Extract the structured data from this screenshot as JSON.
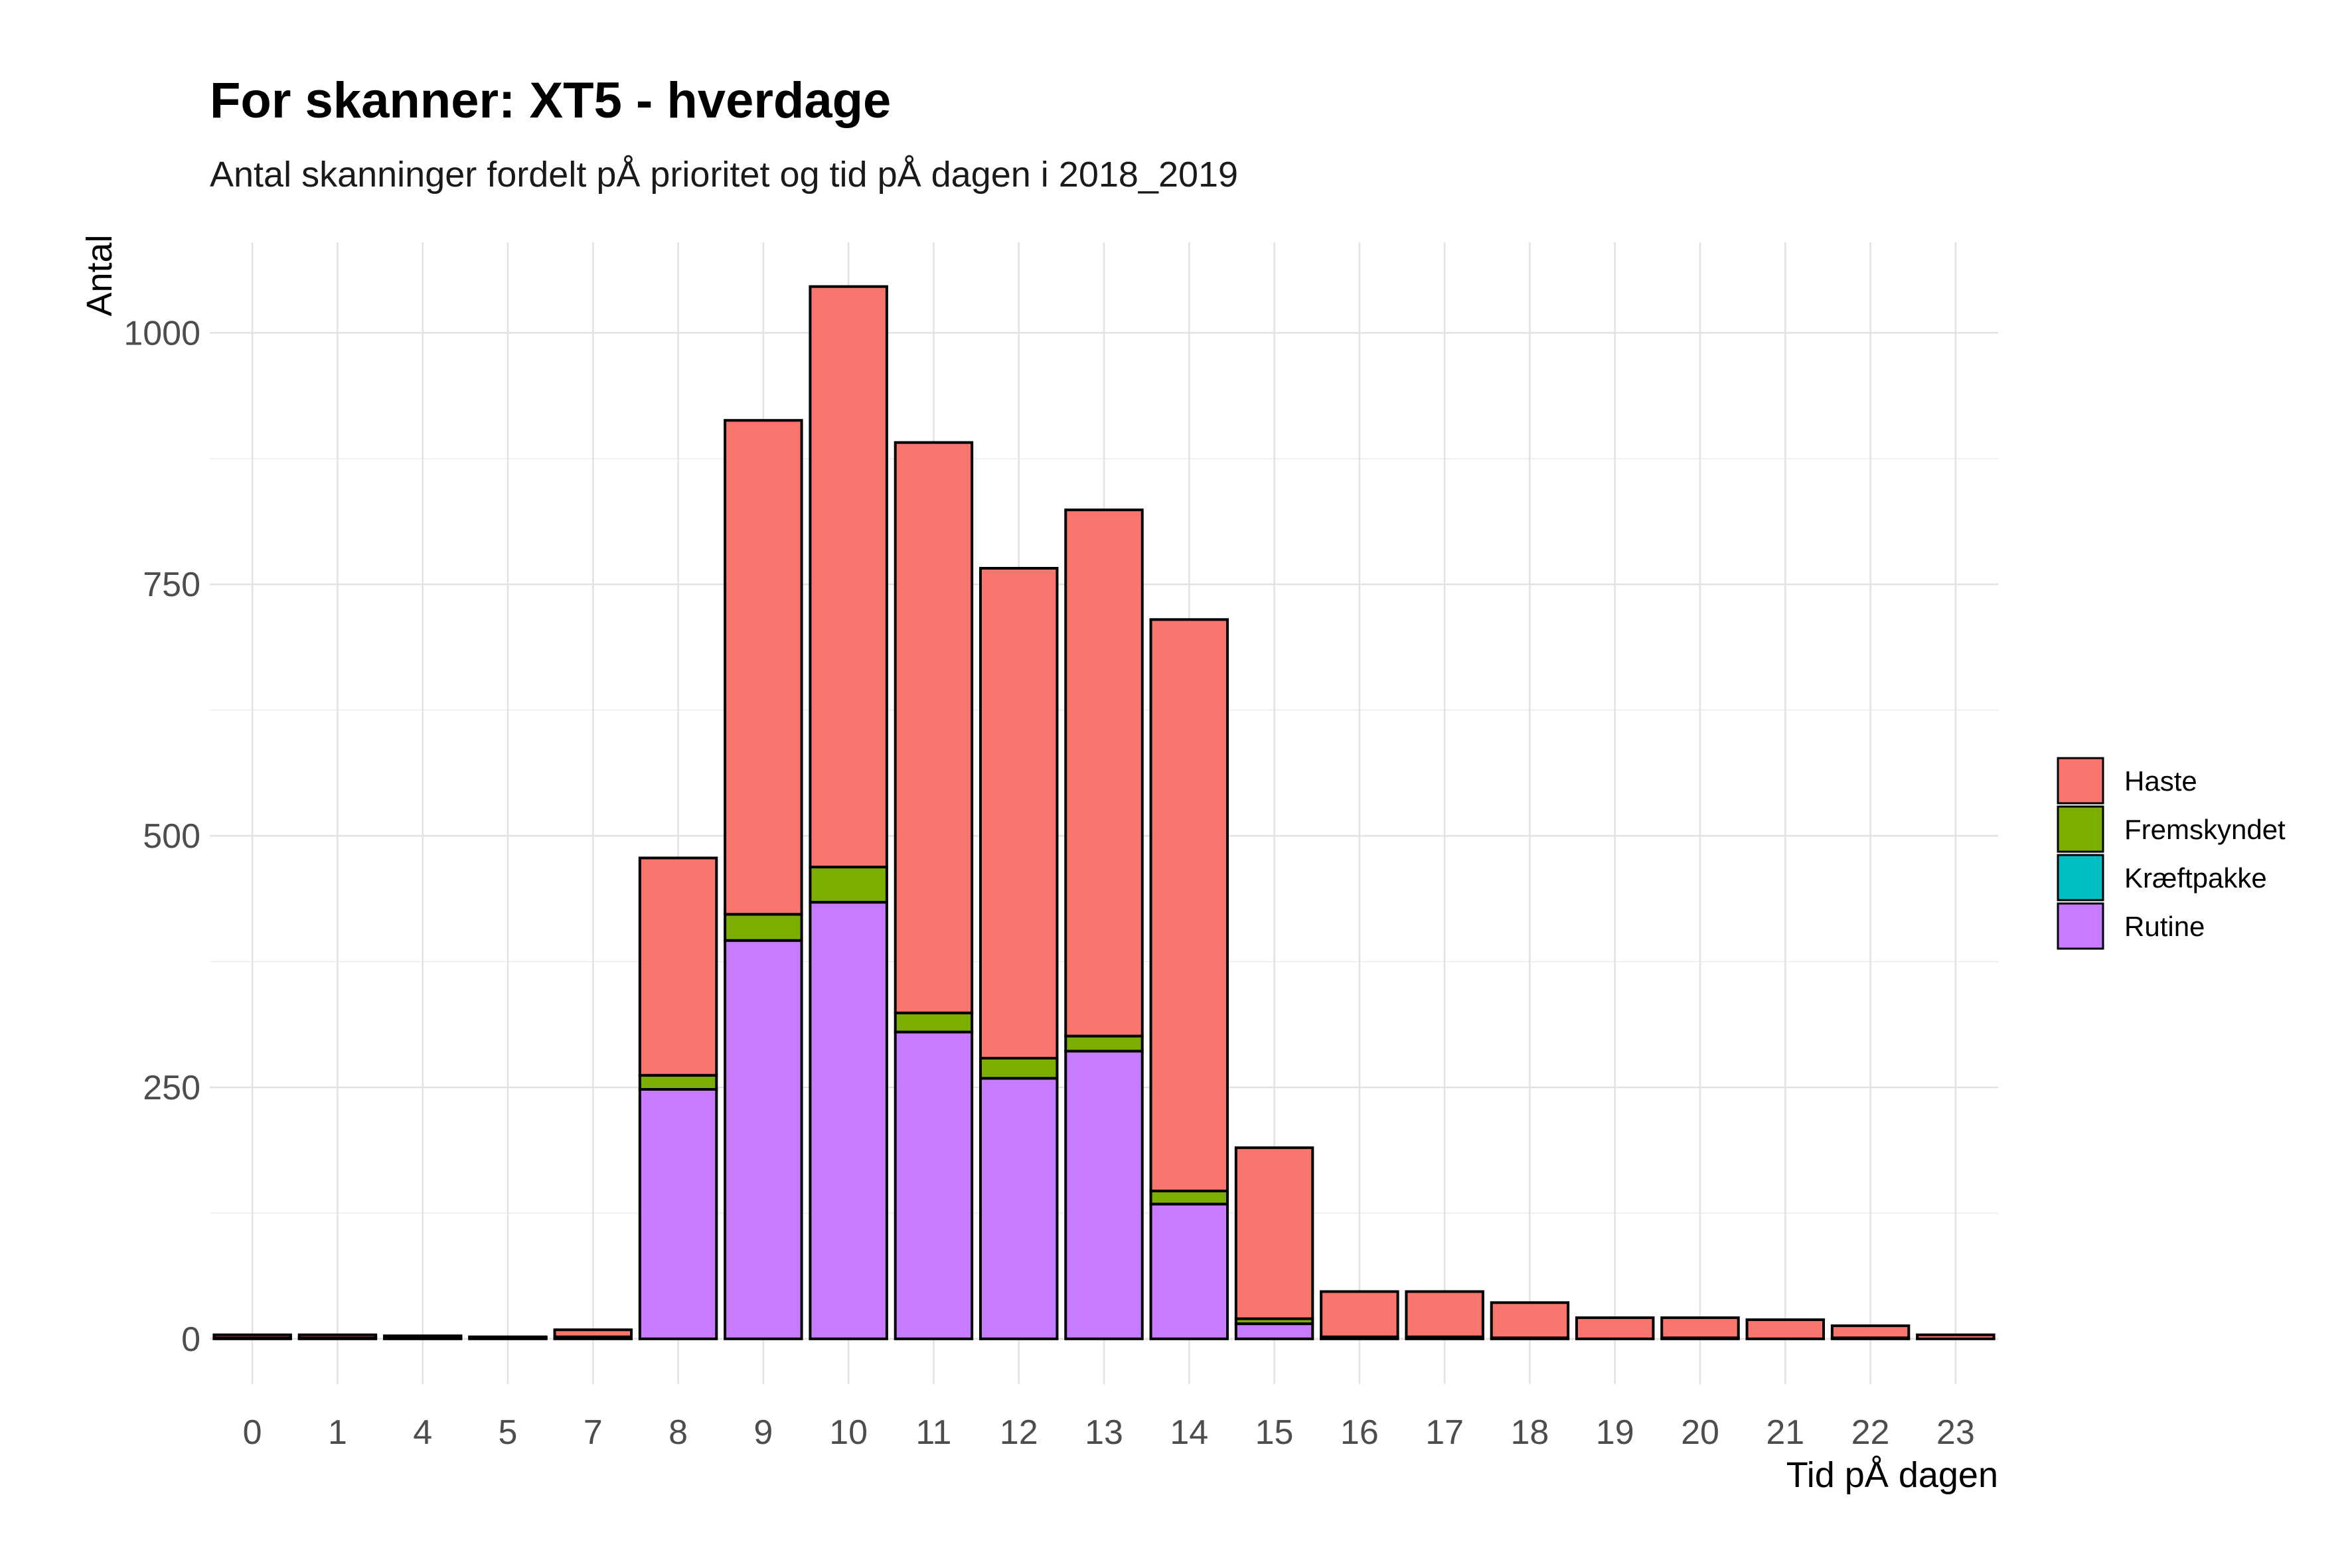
{
  "chart_data": {
    "type": "bar",
    "stacked": true,
    "title": "For skanner: XT5 - hverdage",
    "subtitle": "Antal skanninger fordelt pÅ prioritet og tid pÅ dagen i 2018_2019",
    "xlabel": "Tid pÅ dagen",
    "ylabel": "Antal",
    "ylim": [
      -45,
      1090
    ],
    "yticks": [
      0,
      250,
      500,
      750,
      1000
    ],
    "grid": true,
    "legend_position": "right",
    "categories": [
      "0",
      "1",
      "4",
      "5",
      "7",
      "8",
      "9",
      "10",
      "11",
      "12",
      "13",
      "14",
      "15",
      "16",
      "17",
      "18",
      "19",
      "20",
      "21",
      "22",
      "23"
    ],
    "series": [
      {
        "name": "Rutine",
        "color": "#C77CFF",
        "values": [
          1,
          1,
          1,
          1,
          2,
          248,
          396,
          434,
          305,
          259,
          286,
          134,
          15,
          2,
          2,
          1,
          0,
          1,
          0,
          1,
          0
        ]
      },
      {
        "name": "Kræftpakke",
        "color": "#00BFC4",
        "values": [
          0,
          0,
          0,
          0,
          0,
          0,
          0,
          0,
          0,
          0,
          0,
          0,
          0,
          0,
          0,
          0,
          0,
          0,
          0,
          0,
          0
        ]
      },
      {
        "name": "Fremskyndet",
        "color": "#7CAE00",
        "values": [
          0,
          0,
          0,
          0,
          0,
          14,
          26,
          35,
          19,
          20,
          15,
          13,
          5,
          0,
          0,
          0,
          0,
          0,
          0,
          0,
          0
        ]
      },
      {
        "name": "Haste",
        "color": "#F8766D",
        "values": [
          3,
          3,
          2,
          1,
          7,
          216,
          491,
          577,
          567,
          487,
          523,
          568,
          170,
          45,
          45,
          35,
          21,
          20,
          19,
          12,
          4
        ]
      }
    ],
    "legend_order": [
      "Haste",
      "Fremskyndet",
      "Kræftpakke",
      "Rutine"
    ]
  }
}
